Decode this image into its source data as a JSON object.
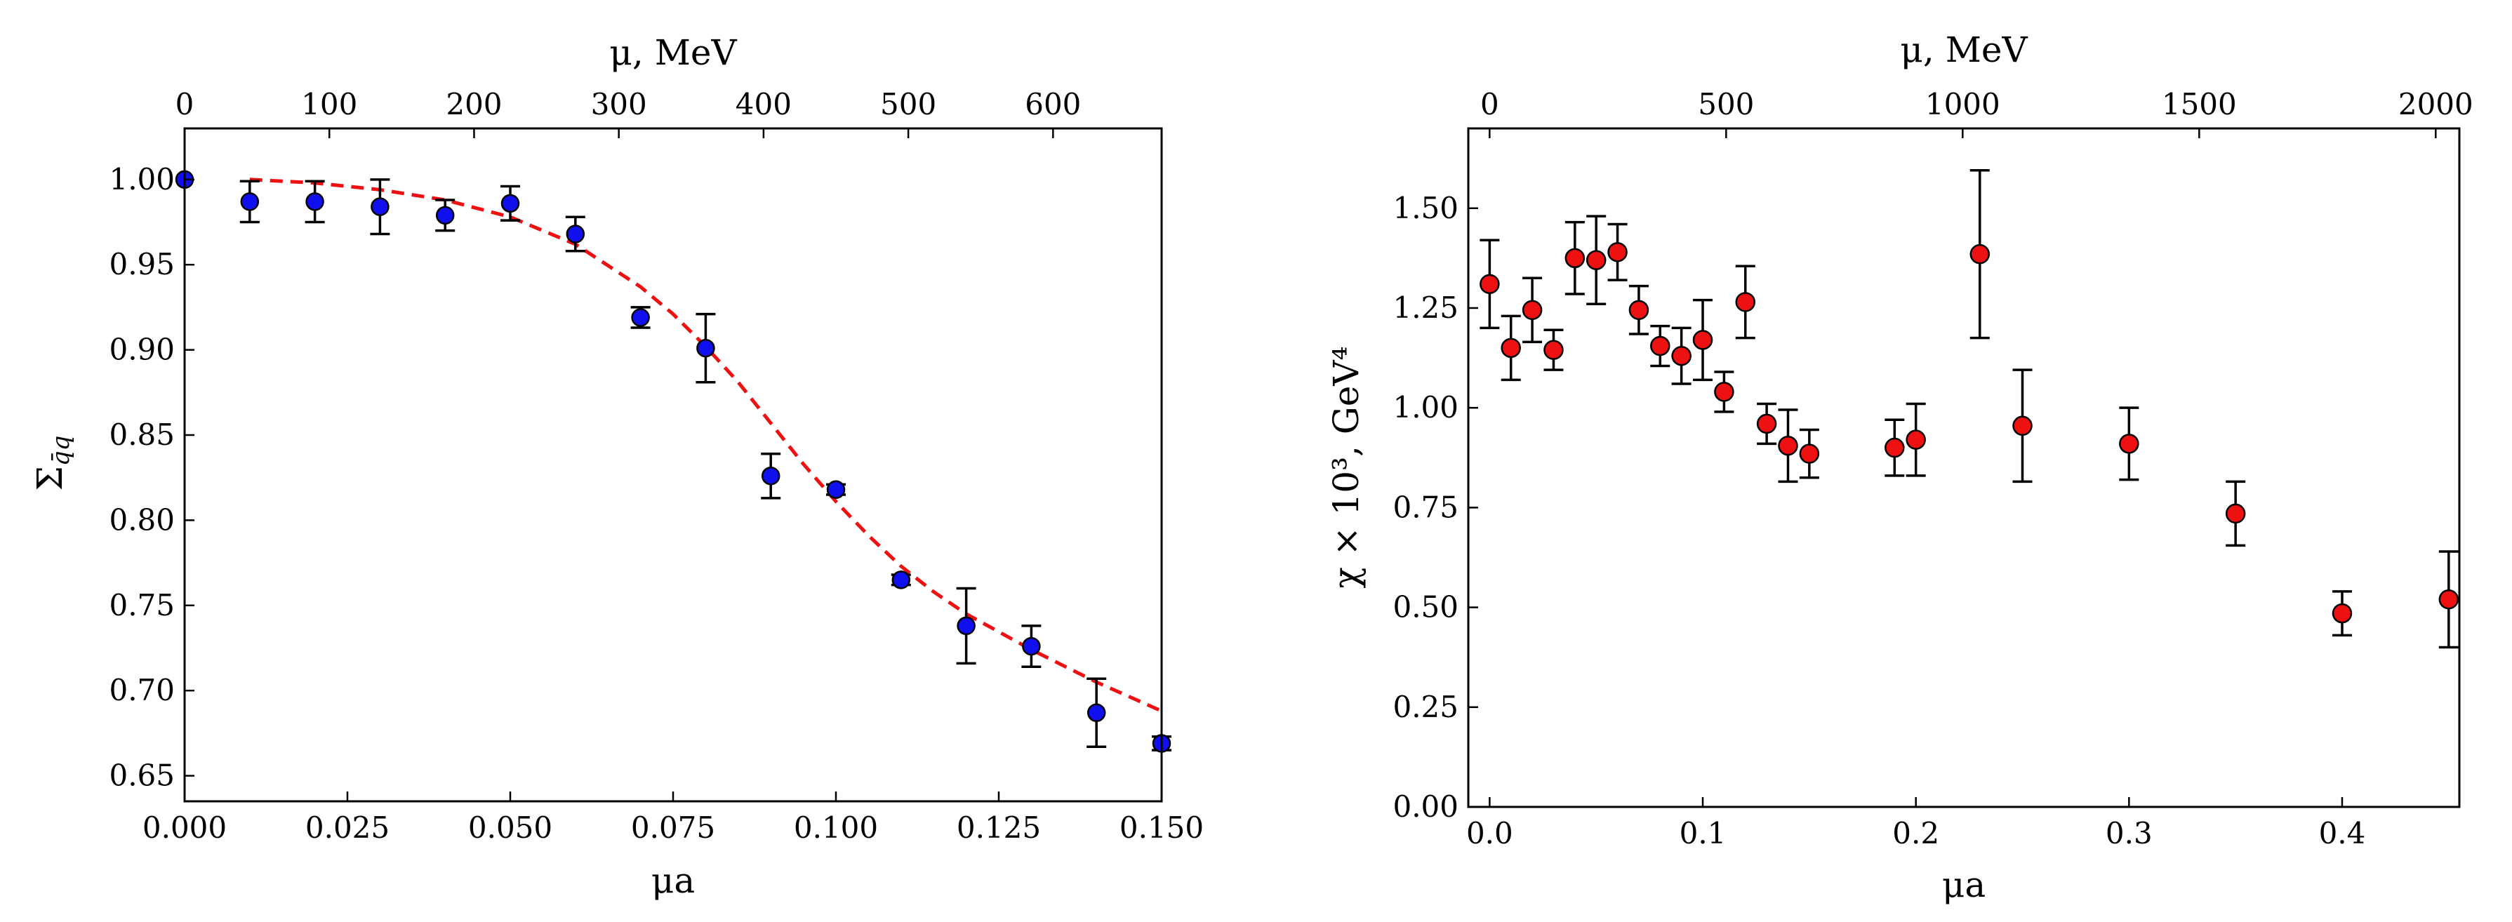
{
  "figure": {
    "style": {
      "left_marker_color": "#1010ee",
      "right_marker_color": "#ee1111",
      "fit_color": "#ee1111",
      "errorbar_color": "#000000"
    }
  },
  "chart_data": [
    {
      "type": "scatter",
      "name": "sigma-vs-mua",
      "xlabel": "μa",
      "ylabel": "Σ_q̄q",
      "ylabel_symbol": "Σ",
      "ylabel_subscript": "q̄q",
      "top_xlabel": "μ, MeV",
      "xlim": [
        0.0,
        0.15
      ],
      "ylim": [
        0.635,
        1.03
      ],
      "top_xlim": [
        0,
        675
      ],
      "xticks": [
        "0.000",
        "0.025",
        "0.050",
        "0.075",
        "0.100",
        "0.125",
        "0.150"
      ],
      "xtick_values": [
        0.0,
        0.025,
        0.05,
        0.075,
        0.1,
        0.125,
        0.15
      ],
      "yticks": [
        "0.65",
        "0.70",
        "0.75",
        "0.80",
        "0.85",
        "0.90",
        "0.95",
        "1.00"
      ],
      "ytick_values": [
        0.65,
        0.7,
        0.75,
        0.8,
        0.85,
        0.9,
        0.95,
        1.0
      ],
      "top_xticks": [
        "0",
        "100",
        "200",
        "300",
        "400",
        "500",
        "600"
      ],
      "top_xtick_values": [
        0,
        100,
        200,
        300,
        400,
        500,
        600
      ],
      "series": [
        {
          "name": "lattice data",
          "marker": "circle",
          "color": "#1010ee",
          "points": [
            {
              "x": 0.0,
              "y": 1.0,
              "err": 0.0
            },
            {
              "x": 0.01,
              "y": 0.987,
              "err": 0.012
            },
            {
              "x": 0.02,
              "y": 0.987,
              "err": 0.012
            },
            {
              "x": 0.03,
              "y": 0.984,
              "err": 0.016
            },
            {
              "x": 0.04,
              "y": 0.979,
              "err": 0.009
            },
            {
              "x": 0.05,
              "y": 0.986,
              "err": 0.01
            },
            {
              "x": 0.06,
              "y": 0.968,
              "err": 0.01
            },
            {
              "x": 0.07,
              "y": 0.919,
              "err": 0.006
            },
            {
              "x": 0.08,
              "y": 0.901,
              "err": 0.02
            },
            {
              "x": 0.09,
              "y": 0.826,
              "err": 0.013
            },
            {
              "x": 0.1,
              "y": 0.818,
              "err": 0.003
            },
            {
              "x": 0.11,
              "y": 0.765,
              "err": 0.003
            },
            {
              "x": 0.12,
              "y": 0.738,
              "err": 0.022
            },
            {
              "x": 0.13,
              "y": 0.726,
              "err": 0.012
            },
            {
              "x": 0.14,
              "y": 0.687,
              "err": 0.02
            },
            {
              "x": 0.15,
              "y": 0.669,
              "err": 0.004
            }
          ]
        },
        {
          "name": "fit",
          "style": "dashed-line",
          "color": "#ee1111",
          "x": [
            0.01,
            0.02,
            0.03,
            0.04,
            0.05,
            0.06,
            0.07,
            0.075,
            0.08,
            0.085,
            0.09,
            0.095,
            0.1,
            0.105,
            0.11,
            0.115,
            0.12,
            0.13,
            0.14,
            0.15
          ],
          "y": [
            1.0,
            0.998,
            0.994,
            0.988,
            0.978,
            0.962,
            0.937,
            0.921,
            0.902,
            0.881,
            0.857,
            0.833,
            0.811,
            0.791,
            0.773,
            0.758,
            0.745,
            0.724,
            0.705,
            0.688
          ]
        }
      ]
    },
    {
      "type": "scatter",
      "name": "chi-vs-mua",
      "xlabel": "μa",
      "ylabel": "χ × 10³, GeV⁴",
      "top_xlabel": "μ, MeV",
      "xlim": [
        -0.01,
        0.455
      ],
      "ylim": [
        0.0,
        1.7
      ],
      "top_xlim": [
        -45,
        2050
      ],
      "xticks": [
        "0.0",
        "0.1",
        "0.2",
        "0.3",
        "0.4"
      ],
      "xtick_values": [
        0.0,
        0.1,
        0.2,
        0.3,
        0.4
      ],
      "yticks": [
        "0.00",
        "0.25",
        "0.50",
        "0.75",
        "1.00",
        "1.25",
        "1.50"
      ],
      "ytick_values": [
        0.0,
        0.25,
        0.5,
        0.75,
        1.0,
        1.25,
        1.5
      ],
      "top_xticks": [
        "0",
        "500",
        "1000",
        "1500",
        "2000"
      ],
      "top_xtick_values": [
        0,
        500,
        1000,
        1500,
        2000
      ],
      "series": [
        {
          "name": "lattice data",
          "marker": "circle",
          "color": "#ee1111",
          "points": [
            {
              "x": 0.0,
              "y": 1.31,
              "err": 0.11
            },
            {
              "x": 0.01,
              "y": 1.15,
              "err": 0.08
            },
            {
              "x": 0.02,
              "y": 1.245,
              "err": 0.08
            },
            {
              "x": 0.03,
              "y": 1.145,
              "err": 0.05
            },
            {
              "x": 0.04,
              "y": 1.375,
              "err": 0.09
            },
            {
              "x": 0.05,
              "y": 1.37,
              "err": 0.11
            },
            {
              "x": 0.06,
              "y": 1.39,
              "err": 0.07
            },
            {
              "x": 0.07,
              "y": 1.245,
              "err": 0.06
            },
            {
              "x": 0.08,
              "y": 1.155,
              "err": 0.05
            },
            {
              "x": 0.09,
              "y": 1.13,
              "err": 0.07
            },
            {
              "x": 0.1,
              "y": 1.17,
              "err": 0.1
            },
            {
              "x": 0.11,
              "y": 1.04,
              "err": 0.05
            },
            {
              "x": 0.12,
              "y": 1.265,
              "err": 0.09
            },
            {
              "x": 0.13,
              "y": 0.96,
              "err": 0.05
            },
            {
              "x": 0.14,
              "y": 0.905,
              "err": 0.09
            },
            {
              "x": 0.15,
              "y": 0.885,
              "err": 0.06
            },
            {
              "x": 0.19,
              "y": 0.9,
              "err": 0.07
            },
            {
              "x": 0.2,
              "y": 0.92,
              "err": 0.09
            },
            {
              "x": 0.23,
              "y": 1.385,
              "err": 0.21
            },
            {
              "x": 0.25,
              "y": 0.955,
              "err": 0.14
            },
            {
              "x": 0.3,
              "y": 0.91,
              "err": 0.09
            },
            {
              "x": 0.35,
              "y": 0.735,
              "err": 0.08
            },
            {
              "x": 0.4,
              "y": 0.485,
              "err": 0.055
            },
            {
              "x": 0.45,
              "y": 0.52,
              "err": 0.12
            }
          ]
        }
      ]
    }
  ]
}
